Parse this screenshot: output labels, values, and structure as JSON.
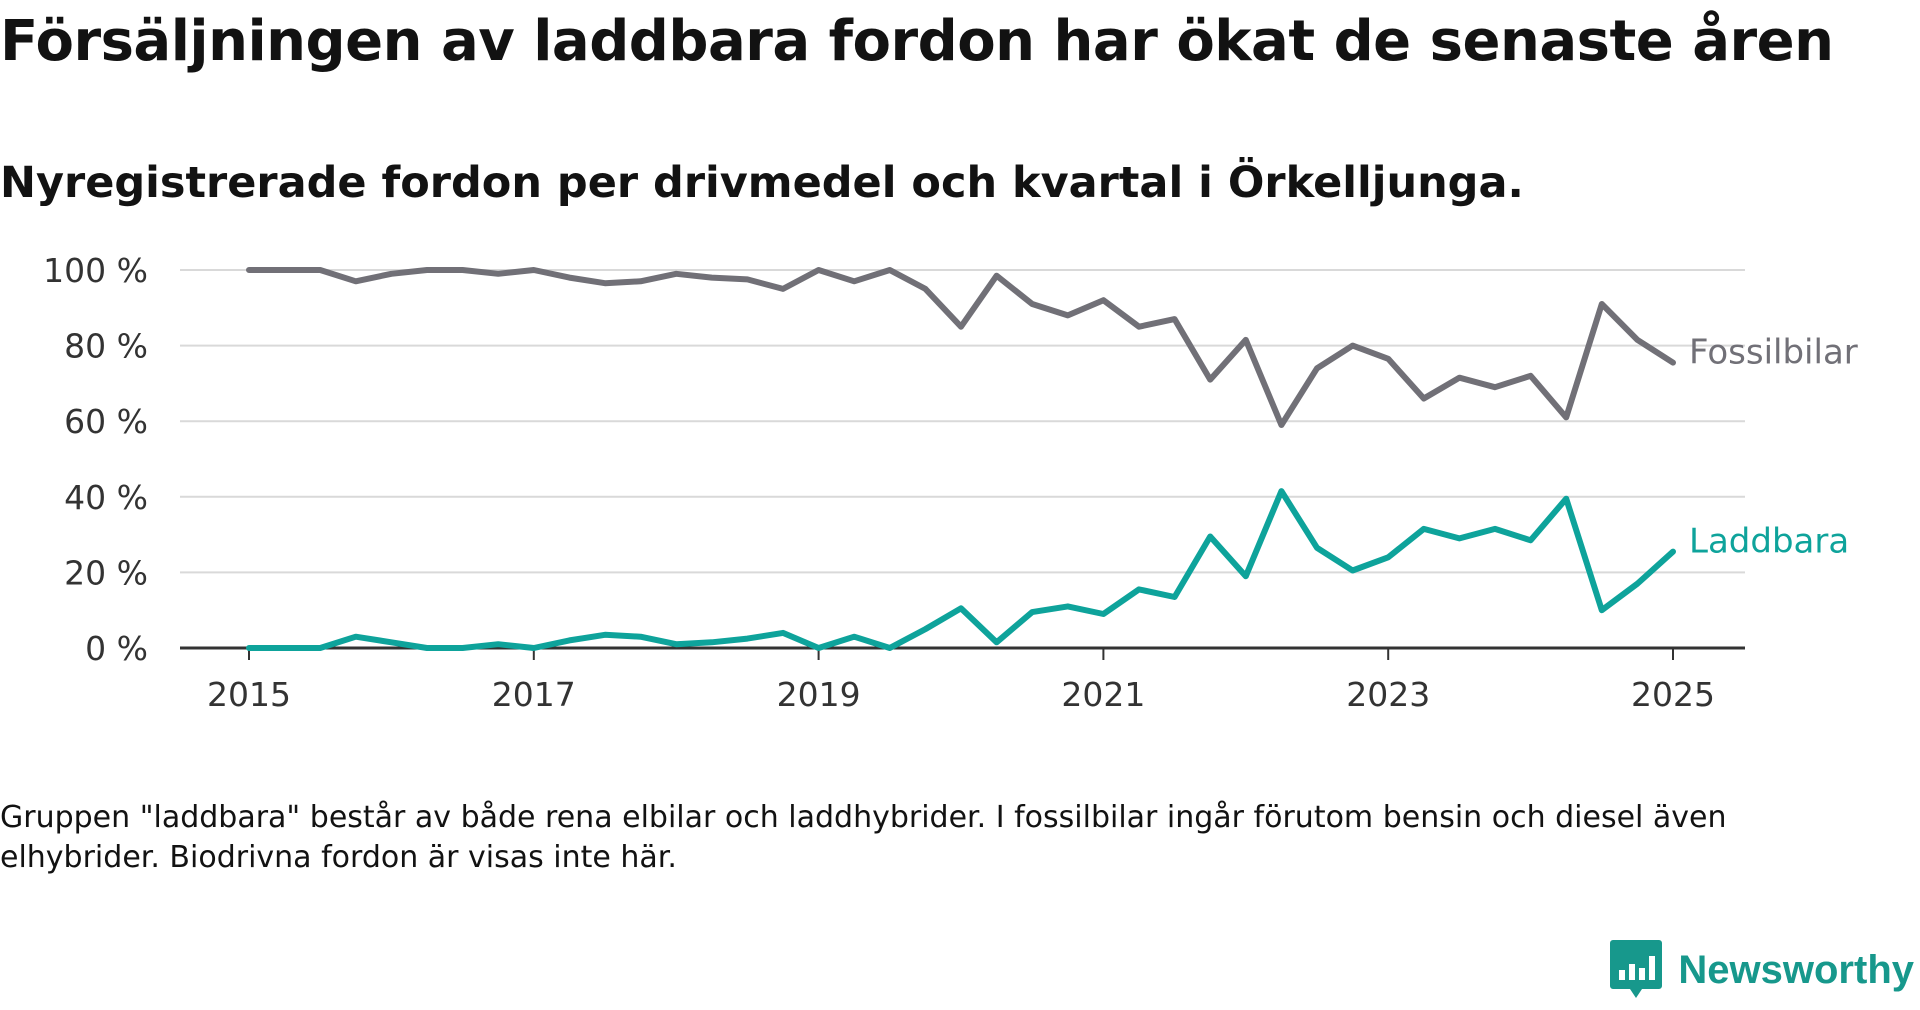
{
  "title": "Försäljningen av laddbara fordon har ökat de senaste åren",
  "subtitle": "Nyregistrerade fordon per drivmedel och kvartal i Örkelljunga.",
  "note": "Gruppen \"laddbara\" består av både rena elbilar och laddhybrider. I fossilbilar ingår förutom bensin och diesel även elhybrider. Biodrivna fordon är visas inte här.",
  "brand": "Newsworthy",
  "colors": {
    "fossil": "#717077",
    "laddbara": "#0ea39b",
    "brand": "#17988c"
  },
  "chart_data": {
    "type": "line",
    "x_start": "2015 Q1",
    "x_ticks": [
      "2015",
      "2017",
      "2019",
      "2021",
      "2023",
      "2025"
    ],
    "y_ticks": [
      "0 %",
      "20 %",
      "40 %",
      "60 %",
      "80 %",
      "100 %"
    ],
    "ylim": [
      0,
      100
    ],
    "grid": true,
    "series": [
      {
        "name": "Fossilbilar",
        "color": "#717077",
        "values": [
          100,
          100,
          100,
          97,
          99,
          100,
          100,
          99,
          100,
          98,
          96.5,
          97,
          99,
          98,
          97.5,
          95,
          100,
          97,
          100,
          95,
          85,
          98.5,
          91,
          88,
          92,
          85,
          87,
          71,
          81.5,
          59,
          74,
          80,
          76.5,
          66,
          71.5,
          69,
          72,
          61,
          91,
          81.5,
          75.5
        ]
      },
      {
        "name": "Laddbara",
        "color": "#0ea39b",
        "values": [
          0,
          0,
          0,
          3,
          1.5,
          0,
          0,
          1,
          0,
          2,
          3.5,
          3,
          1,
          1.5,
          2.5,
          4,
          0,
          3,
          0,
          5,
          10.5,
          1.5,
          9.5,
          11,
          9,
          15.5,
          13.5,
          29.5,
          19,
          41.5,
          26.5,
          20.5,
          24,
          31.5,
          29,
          31.5,
          28.5,
          39.5,
          10,
          17,
          25.5
        ]
      }
    ]
  }
}
